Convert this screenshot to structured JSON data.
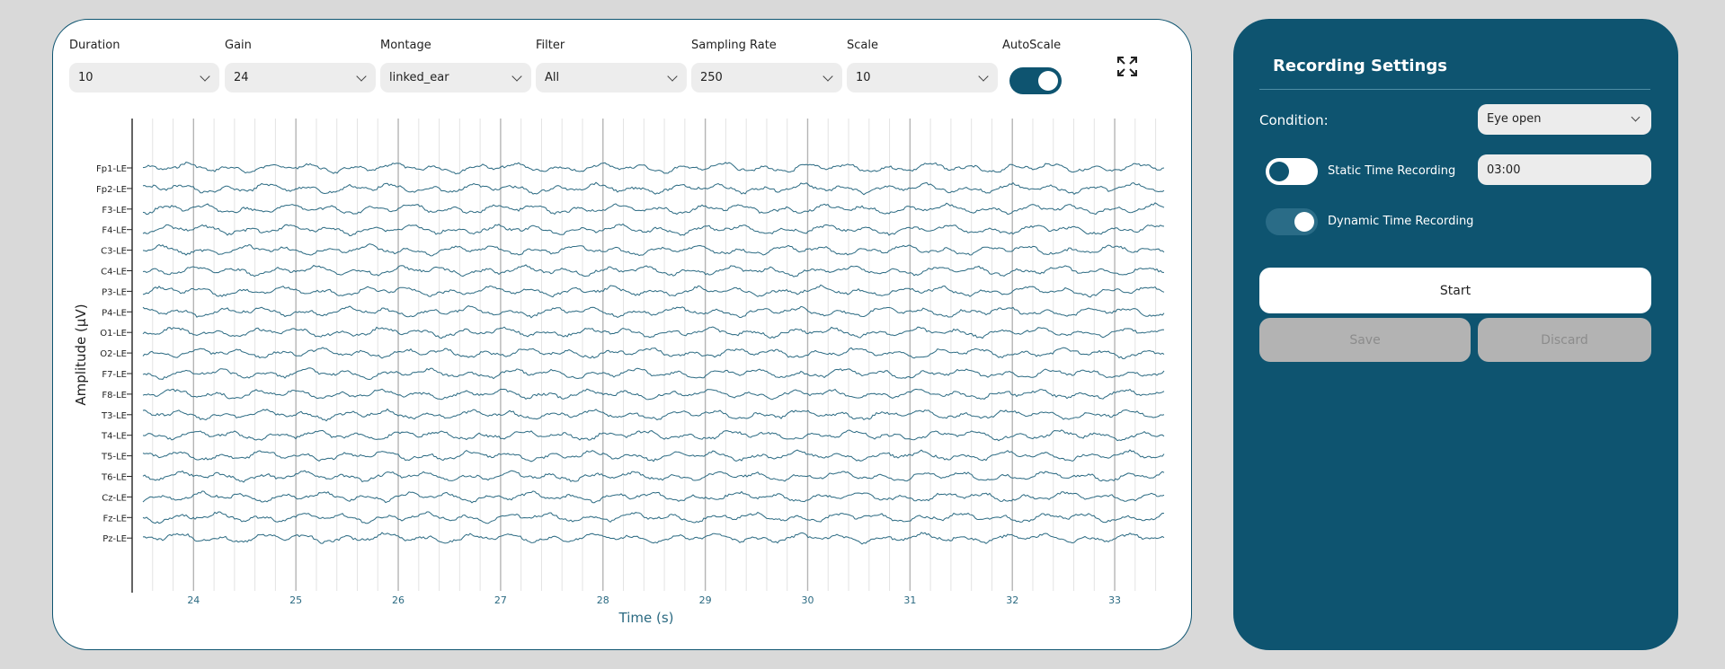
{
  "controls": [
    {
      "label": "Duration",
      "value": "10"
    },
    {
      "label": "Gain",
      "value": "24"
    },
    {
      "label": "Montage",
      "value": "linked_ear"
    },
    {
      "label": "Filter",
      "value": "All"
    },
    {
      "label": "Sampling Rate",
      "value": "250"
    },
    {
      "label": "Scale",
      "value": "10"
    }
  ],
  "autoscale": {
    "label": "AutoScale",
    "enabled": true
  },
  "icons": {
    "expand": "expand-fullscreen-icon",
    "chevron": "chevron-down-icon"
  },
  "colors": {
    "accent": "#0e5470",
    "trace": "#2b6a82",
    "background": "#d9d9d9"
  },
  "chart_data": {
    "type": "line",
    "ylabel": "Amplitude (µV)",
    "xlabel": "Time (s)",
    "xlim": [
      23.4,
      33.5
    ],
    "x_ticks": [
      24,
      25,
      26,
      27,
      28,
      29,
      30,
      31,
      32,
      33
    ],
    "channels": [
      "Fp1-LE",
      "Fp2-LE",
      "F3-LE",
      "F4-LE",
      "C3-LE",
      "C4-LE",
      "P3-LE",
      "P4-LE",
      "O1-LE",
      "O2-LE",
      "F7-LE",
      "F8-LE",
      "T3-LE",
      "T4-LE",
      "T5-LE",
      "T6-LE",
      "Cz-LE",
      "Fz-LE",
      "Pz-LE"
    ],
    "grid": true
  },
  "recording": {
    "title": "Recording Settings",
    "condition_label": "Condition:",
    "condition_value": "Eye open",
    "static_label": "Static Time Recording",
    "static_enabled": false,
    "static_time": "03:00",
    "dynamic_label": "Dynamic Time Recording",
    "dynamic_enabled": true,
    "start_label": "Start",
    "save_label": "Save",
    "discard_label": "Discard"
  }
}
